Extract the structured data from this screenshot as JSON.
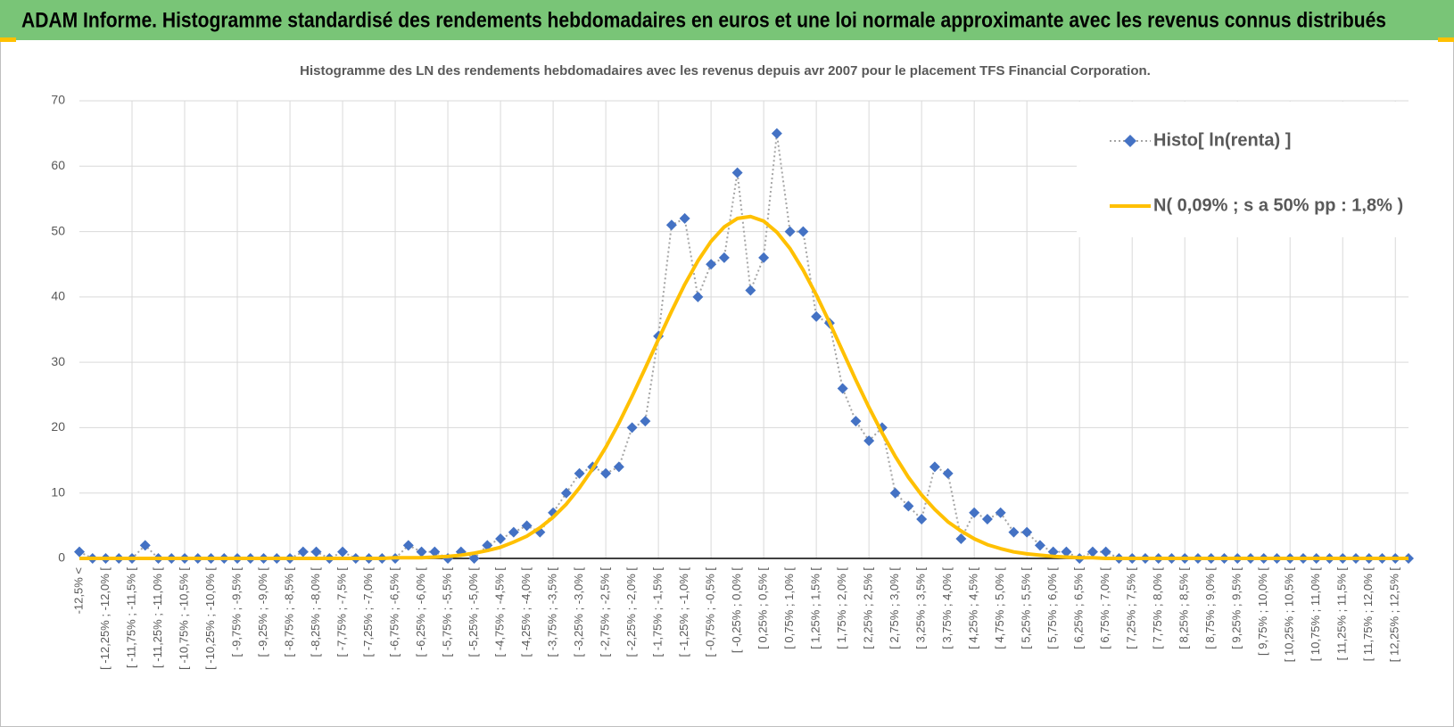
{
  "header": {
    "title": "ADAM Informe. Histogramme standardisé des rendements hebdomadaires en euros et une loi normale approximante avec les revenus connus distribués"
  },
  "chart_data": {
    "type": "line",
    "title": "Histogramme des LN des rendements hebdomadaires avec les revenus depuis avr 2007 pour le placement TFS Financial Corporation.",
    "categories": [
      "-12,5% <",
      null,
      "[ -12,25% ; -12,0% [",
      null,
      "[ -11,75% ; -11,5% [",
      null,
      "[ -11,25% ; -11,0% [",
      null,
      "[ -10,75% ; -10,5% [",
      null,
      "[ -10,25% ; -10,0% [",
      null,
      "[ -9,75% ; -9,5% [",
      null,
      "[ -9,25% ; -9,0% [",
      null,
      "[ -8,75% ; -8,5% [",
      null,
      "[ -8,25% ; -8,0% [",
      null,
      "[ -7,75% ; -7,5% [",
      null,
      "[ -7,25% ; -7,0% [",
      null,
      "[ -6,75% ; -6,5% [",
      null,
      "[ -6,25% ; -6,0% [",
      null,
      "[ -5,75% ; -5,5% [",
      null,
      "[ -5,25% ; -5,0% [",
      null,
      "[ -4,75% ; -4,5% [",
      null,
      "[ -4,25% ; -4,0% [",
      null,
      "[ -3,75% ; -3,5% [",
      null,
      "[ -3,25% ; -3,0% [",
      null,
      "[ -2,75% ; -2,5% [",
      null,
      "[ -2,25% ; -2,0% [",
      null,
      "[ -1,75% ; -1,5% [",
      null,
      "[ -1,25% ; -1,0% [",
      null,
      "[ -0,75% ; -0,5% [",
      null,
      "[ -0,25% ; 0,0% [",
      null,
      "[ 0,25% ; 0,5% [",
      null,
      "[ 0,75% ; 1,0% [",
      null,
      "[ 1,25% ; 1,5% [",
      null,
      "[ 1,75% ; 2,0% [",
      null,
      "[ 2,25% ; 2,5% [",
      null,
      "[ 2,75% ; 3,0% [",
      null,
      "[ 3,25% ; 3,5% [",
      null,
      "[ 3,75% ; 4,0% [",
      null,
      "[ 4,25% ; 4,5% [",
      null,
      "[ 4,75% ; 5,0% [",
      null,
      "[ 5,25% ; 5,5% [",
      null,
      "[ 5,75% ; 6,0% [",
      null,
      "[ 6,25% ; 6,5% [",
      null,
      "[ 6,75% ; 7,0% [",
      null,
      "[ 7,25% ; 7,5% [",
      null,
      "[ 7,75% ; 8,0% [",
      null,
      "[ 8,25% ; 8,5% [",
      null,
      "[ 8,75% ; 9,0% [",
      null,
      "[ 9,25% ; 9,5% [",
      null,
      "[ 9,75% ; 10,0% [",
      null,
      "[ 10,25% ; 10,5% [",
      null,
      "[ 10,75% ; 11,0% [",
      null,
      "[ 11,25% ; 11,5% [",
      null,
      "[ 11,75% ; 12,0% [",
      null,
      "[ 12,25% ; 12,5% [",
      null
    ],
    "series": [
      {
        "name": "Histo[ ln(renta) ]",
        "color": "#4472c4",
        "line_color": "#a5a5a5",
        "line_style": "dotted",
        "marker": "diamond",
        "values": [
          1,
          0,
          0,
          0,
          0,
          2,
          0,
          0,
          0,
          0,
          0,
          0,
          0,
          0,
          0,
          0,
          0,
          1,
          1,
          0,
          1,
          0,
          0,
          0,
          0,
          2,
          1,
          1,
          0,
          1,
          0,
          2,
          3,
          4,
          5,
          4,
          7,
          10,
          13,
          14,
          13,
          14,
          20,
          21,
          34,
          51,
          52,
          40,
          45,
          46,
          59,
          41,
          46,
          65,
          50,
          50,
          37,
          36,
          26,
          21,
          18,
          20,
          10,
          8,
          6,
          14,
          13,
          3,
          7,
          6,
          7,
          4,
          4,
          2,
          1,
          1,
          0,
          1,
          1,
          0,
          0,
          0,
          0,
          0,
          0,
          0,
          0,
          0,
          0,
          0,
          0,
          0,
          0,
          0,
          0,
          0,
          0,
          0,
          0,
          0,
          0,
          0
        ]
      },
      {
        "name": "N( 0,09% ; s a 50% pp : 1,8% )",
        "color": "#ffc000",
        "line_style": "solid",
        "values": [
          0,
          0,
          0,
          0,
          0,
          0,
          0,
          0,
          0,
          0,
          0,
          0,
          0,
          0,
          0,
          0,
          0,
          0,
          0,
          0,
          0,
          0,
          0,
          0,
          0.1,
          0.1,
          0.1,
          0.2,
          0.3,
          0.5,
          0.8,
          1.2,
          1.7,
          2.5,
          3.4,
          4.7,
          6.3,
          8.3,
          10.8,
          13.7,
          17.0,
          20.7,
          24.8,
          29.1,
          33.5,
          37.8,
          41.9,
          45.5,
          48.5,
          50.7,
          52.0,
          52.3,
          51.6,
          49.9,
          47.4,
          44.1,
          40.3,
          36.1,
          31.7,
          27.3,
          23.1,
          19.2,
          15.6,
          12.4,
          9.7,
          7.5,
          5.6,
          4.2,
          3.0,
          2.1,
          1.5,
          1.0,
          0.7,
          0.5,
          0.3,
          0.2,
          0.1,
          0.1,
          0,
          0,
          0,
          0,
          0,
          0,
          0,
          0,
          0,
          0,
          0,
          0,
          0,
          0,
          0,
          0,
          0,
          0,
          0,
          0,
          0,
          0,
          0,
          0
        ]
      }
    ],
    "ylim": [
      0,
      70
    ],
    "yticks": [
      0,
      10,
      20,
      30,
      40,
      50,
      60,
      70
    ],
    "grid": true,
    "legend": "upper right"
  }
}
